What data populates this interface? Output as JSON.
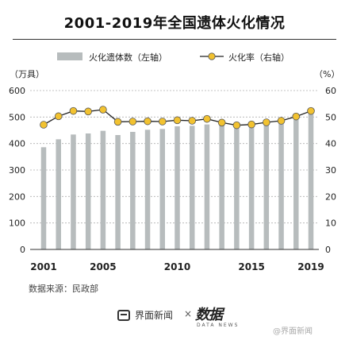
{
  "title": "2001-2019年全国遗体火化情况",
  "legend": {
    "bar_label": "火化遗体数（左轴）",
    "line_label": "火化率（右轴）"
  },
  "source": "数据来源：民政部",
  "footer": {
    "brand": "界面新闻",
    "cross": "×",
    "logo": "数据",
    "logo_sub": "DATA NEWS",
    "weibo": "@界面新闻"
  },
  "colors": {
    "bar": "#b7bcbd",
    "line": "#222222",
    "marker": "#f2c230",
    "grid": "#b0b0b0"
  },
  "chart_data": {
    "type": "bar",
    "title": "2001-2019年全国遗体火化情况",
    "years": [
      2001,
      2002,
      2003,
      2004,
      2005,
      2006,
      2007,
      2008,
      2009,
      2010,
      2011,
      2012,
      2013,
      2014,
      2015,
      2016,
      2017,
      2018,
      2019
    ],
    "x_tick_labels": [
      "2001",
      "2005",
      "2010",
      "2015",
      "2019"
    ],
    "x_tick_years": [
      2001,
      2005,
      2010,
      2015,
      2019
    ],
    "left_axis": {
      "unit": "（万具）",
      "ticks": [
        0,
        100,
        200,
        300,
        400,
        500,
        600
      ],
      "range": [
        0,
        600
      ]
    },
    "right_axis": {
      "unit": "（%）",
      "ticks": [
        0,
        10,
        20,
        30,
        40,
        50,
        60
      ],
      "range": [
        0,
        60
      ]
    },
    "series": [
      {
        "name": "火化遗体数（左轴）",
        "type": "bar",
        "axis": "left",
        "values": [
          386,
          416,
          434,
          438,
          448,
          432,
          444,
          452,
          455,
          465,
          467,
          472,
          473,
          475,
          475,
          480,
          485,
          490,
          515
        ]
      },
      {
        "name": "火化率（右轴）",
        "type": "line",
        "axis": "right",
        "values": [
          47.1,
          50.3,
          52.3,
          52.1,
          52.8,
          48.2,
          48.3,
          48.4,
          48.3,
          48.8,
          48.6,
          49.3,
          47.9,
          46.9,
          47.2,
          48.0,
          48.6,
          50.2,
          52.3
        ]
      }
    ],
    "grid": true,
    "legend_position": "top"
  }
}
